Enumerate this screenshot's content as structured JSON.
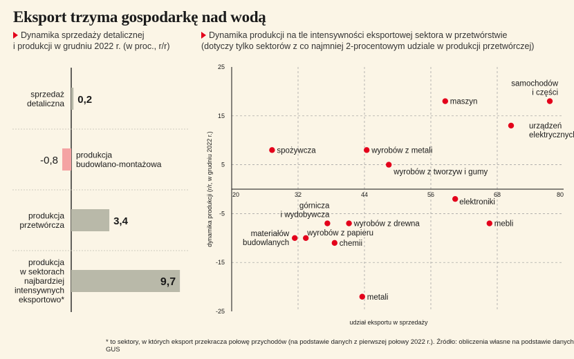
{
  "title": "Eksport trzyma gospodarkę nad wodą",
  "left_subtitle": [
    "Dynamika sprzedaży detalicznej",
    "i produkcji w grudniu 2022 r. (w proc., r/r)"
  ],
  "right_subtitle": [
    "Dynamika produkcji na tle intensywności eksportowej sektora w przetwórstwie",
    "(dotyczy tylko sektorów z co najmniej 2-procentowym udziale w produkcji przetwórczej)"
  ],
  "footnote": "* to sektory, w których eksport przekracza połowę przychodów (na podstawie danych z pierwszej połowy 2022 r.). Źródło: obliczenia własne na podstawie danych GUS",
  "colors": {
    "accent": "#e3001b",
    "bar_positive": "#b9b9a9",
    "bar_negative": "#f4a3a3",
    "background": "#fbf5e6",
    "grid": "#9a9a9a"
  },
  "chart_data": [
    {
      "type": "bar",
      "orientation": "horizontal",
      "categories": [
        [
          "sprzedaż",
          "detaliczna"
        ],
        [
          "produkcja",
          "budowlano-montażowa"
        ],
        [
          "produkcja",
          "przetwórcza"
        ],
        [
          "produkcja",
          "w sektorach",
          "najbardziej",
          "intensywnych",
          "eksportowo*"
        ]
      ],
      "values": [
        0.2,
        -0.8,
        3.4,
        9.7
      ],
      "value_labels": [
        "0,2",
        "-0,8",
        "3,4",
        "9,7"
      ]
    },
    {
      "type": "scatter",
      "xlabel": "udział eksportu w sprzedaży",
      "ylabel": "dynamika produkcji (r/r, w grudniu 2022 r.)",
      "xlim": [
        20,
        80
      ],
      "ylim": [
        -25,
        25
      ],
      "xticks": [
        "20",
        "32",
        "44",
        "56",
        "68",
        "80"
      ],
      "yticks": [
        "25",
        "15",
        "5",
        "-5",
        "-15",
        "-25"
      ],
      "grid": true,
      "points": [
        {
          "label": [
            "samochodów",
            "i części"
          ],
          "x": 77.5,
          "y": 18
        },
        {
          "label": [
            "maszyn"
          ],
          "x": 58.6,
          "y": 18
        },
        {
          "label": [
            "urządzeń",
            "elektrycznych"
          ],
          "x": 70.5,
          "y": 13
        },
        {
          "label": [
            "spożywcza"
          ],
          "x": 27.3,
          "y": 8
        },
        {
          "label": [
            "wyrobów z metali"
          ],
          "x": 44.4,
          "y": 8
        },
        {
          "label": [
            "wyrobów z tworzyw i gumy"
          ],
          "x": 48.4,
          "y": 5
        },
        {
          "label": [
            "elektroniki"
          ],
          "x": 60.4,
          "y": -2
        },
        {
          "label": [
            "mebli"
          ],
          "x": 66.6,
          "y": -7
        },
        {
          "label": [
            "górnicza",
            "i wydobywcza"
          ],
          "x": 37.3,
          "y": -7
        },
        {
          "label": [
            "wyrobów z drewna"
          ],
          "x": 41.2,
          "y": -7
        },
        {
          "label": [
            "wyrobów z papieru"
          ],
          "x": 33.4,
          "y": -10
        },
        {
          "label": [
            "materiałów",
            "budowlanych"
          ],
          "x": 31.4,
          "y": -10
        },
        {
          "label": [
            "chemii"
          ],
          "x": 38.6,
          "y": -11
        },
        {
          "label": [
            "metali"
          ],
          "x": 43.6,
          "y": -22
        }
      ]
    }
  ]
}
